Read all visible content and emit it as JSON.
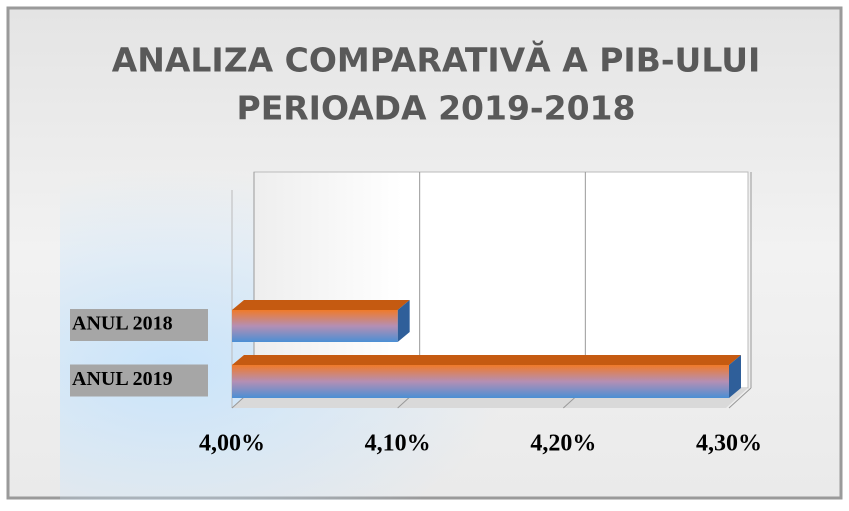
{
  "chart_data": {
    "type": "bar",
    "orientation": "horizontal",
    "title": [
      "ANALIZA COMPARATIVĂ A PIB-ULUI",
      "PERIOADA 2019-2018"
    ],
    "categories": [
      "ANUL 2018",
      "ANUL 2019"
    ],
    "values": [
      4.1,
      4.3
    ],
    "xlim": [
      4.0,
      4.3
    ],
    "xticks": [
      {
        "value": 4.0,
        "label": "4,00%"
      },
      {
        "value": 4.1,
        "label": "4,10%"
      },
      {
        "value": 4.2,
        "label": "4,20%"
      },
      {
        "value": 4.3,
        "label": "4,30%"
      }
    ],
    "grid": true
  }
}
